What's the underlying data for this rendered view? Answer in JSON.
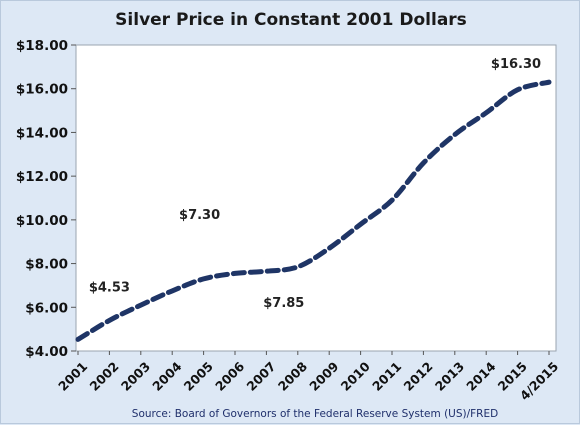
{
  "chart_data": {
    "type": "line",
    "title": "Silver Price in Constant 2001 Dollars",
    "xlabel": "",
    "ylabel": "",
    "categories": [
      "2001",
      "2002",
      "2003",
      "2004",
      "2005",
      "2006",
      "2007",
      "2008",
      "2009",
      "2010",
      "2011",
      "2012",
      "2013",
      "2014",
      "2015",
      "4/2015"
    ],
    "series": [
      {
        "values": [
          4.53,
          5.4,
          6.1,
          6.75,
          7.3,
          7.55,
          7.65,
          7.85,
          8.7,
          9.8,
          10.9,
          12.6,
          13.9,
          14.9,
          15.95,
          16.3
        ]
      }
    ],
    "ylim": [
      4,
      18
    ],
    "yticks": [
      "$4.00",
      "$6.00",
      "$8.00",
      "$10.00",
      "$12.00",
      "$14.00",
      "$16.00",
      "$18.00"
    ],
    "grid": false,
    "line_color": "#1f3566",
    "line_style": "dashed",
    "annotations": [
      {
        "text": "$4.53"
      },
      {
        "text": "$7.30"
      },
      {
        "text": "$7.85"
      },
      {
        "text": "$16.30"
      }
    ],
    "source": "Source: Board of Governors of the Federal Reserve System (US)/FRED"
  }
}
